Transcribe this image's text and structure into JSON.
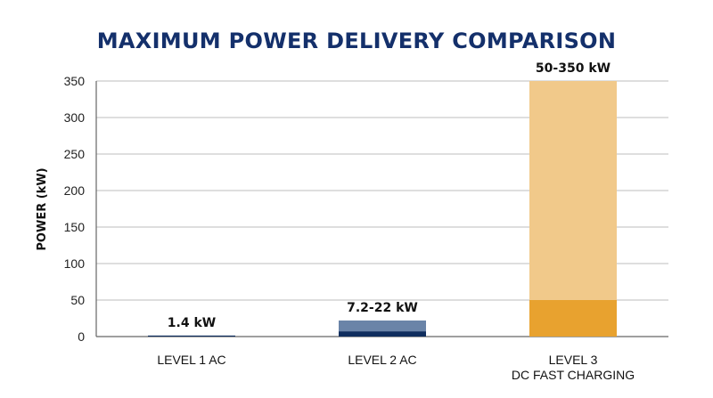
{
  "chart_data": {
    "type": "bar",
    "title": "MAXIMUM POWER DELIVERY COMPARISON",
    "ylabel": "POWER (kW)",
    "xlabel": "",
    "ylim": [
      0,
      350
    ],
    "yticks": [
      0,
      50,
      100,
      150,
      200,
      250,
      300,
      350
    ],
    "grid": true,
    "categories": [
      {
        "lines": [
          "LEVEL 1 AC"
        ]
      },
      {
        "lines": [
          "LEVEL 2 AC"
        ]
      },
      {
        "lines": [
          "LEVEL 3",
          "DC FAST CHARGING"
        ]
      }
    ],
    "bars": [
      {
        "min": 1.4,
        "max": 1.4,
        "label": "1.4 kW",
        "base_color": "#0f2d5e",
        "range_color": "#6a84a8"
      },
      {
        "min": 7.2,
        "max": 22,
        "label": "7.2-22 kW",
        "base_color": "#0f2d5e",
        "range_color": "#6a84a8"
      },
      {
        "min": 50,
        "max": 350,
        "label": "50-350 kW",
        "base_color": "#e8a22f",
        "range_color": "#f1c98a"
      }
    ],
    "colors": {
      "title": "#14306b",
      "grid": "#bcbcbc"
    }
  }
}
